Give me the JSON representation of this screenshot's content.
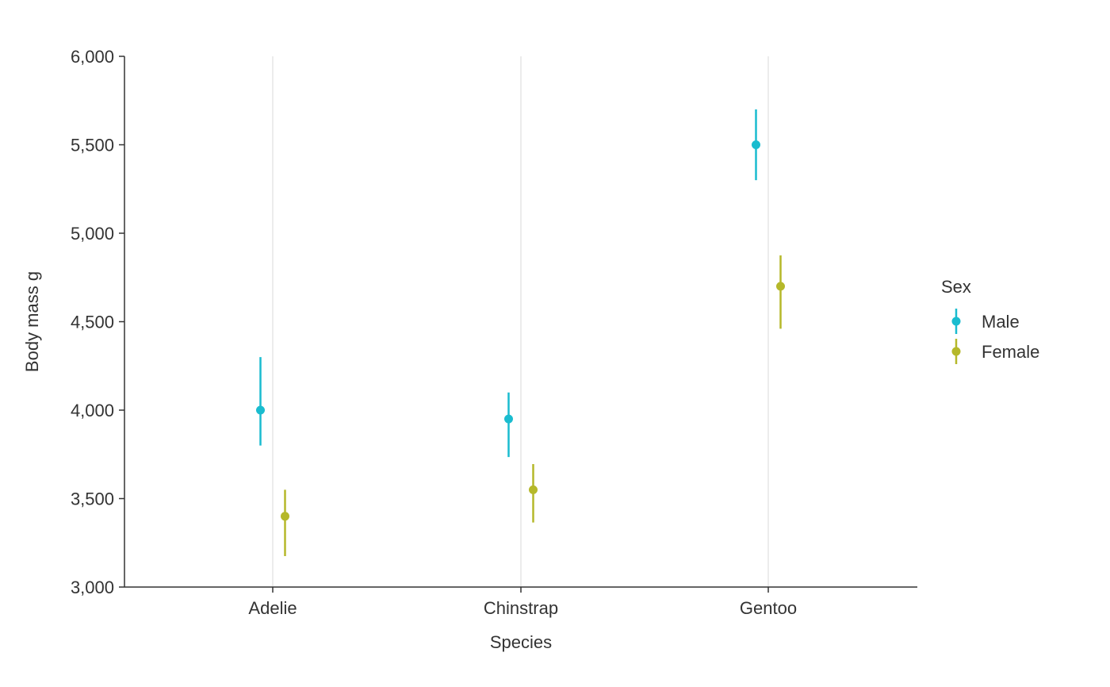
{
  "chart_data": {
    "type": "scatter",
    "subtype": "pointrange",
    "title": "",
    "xlabel": "Species",
    "ylabel": "Body mass g",
    "categories": [
      "Adelie",
      "Chinstrap",
      "Gentoo"
    ],
    "ylim": [
      3000,
      6000
    ],
    "yticks": [
      3000,
      3500,
      4000,
      4500,
      5000,
      5500,
      6000
    ],
    "ytick_labels": [
      "3,000",
      "3,500",
      "4,000",
      "4,500",
      "5,000",
      "5,500",
      "6,000"
    ],
    "grid": "vertical-major",
    "legend": {
      "title": "Sex",
      "position": "right"
    },
    "series": [
      {
        "name": "Male",
        "color": "#1abccf",
        "values": [
          4000,
          3950,
          5500
        ],
        "lower": [
          3800,
          3735,
          5300
        ],
        "upper": [
          4300,
          4100,
          5700
        ]
      },
      {
        "name": "Female",
        "color": "#b5b82a",
        "values": [
          3400,
          3550,
          4700
        ],
        "lower": [
          3175,
          3365,
          4460
        ],
        "upper": [
          3550,
          3695,
          4875
        ]
      }
    ]
  }
}
